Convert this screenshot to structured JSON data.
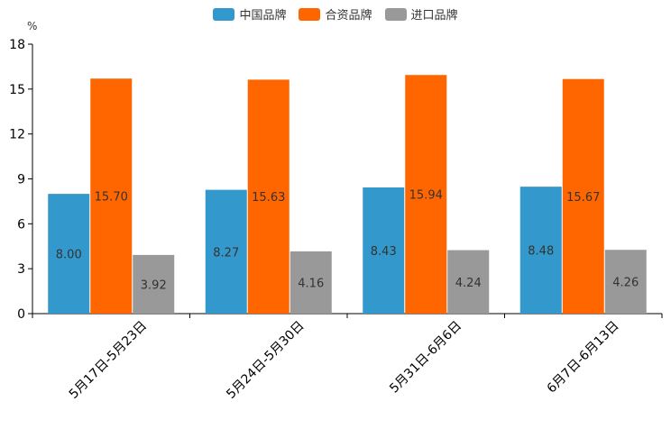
{
  "chart_data": {
    "type": "bar",
    "unit": "%",
    "categories": [
      "5月17日-5月23日",
      "5月24日-5月30日",
      "5月31日-6月6日",
      "6月7日-6月13日"
    ],
    "series": [
      {
        "name": "中国品牌",
        "color": "#3399cc",
        "values": [
          8.0,
          8.27,
          8.43,
          8.48
        ],
        "labels": [
          "8.00",
          "8.27",
          "8.43",
          "8.48"
        ]
      },
      {
        "name": "合资品牌",
        "color": "#ff6600",
        "values": [
          15.7,
          15.63,
          15.94,
          15.67
        ],
        "labels": [
          "15.70",
          "15.63",
          "15.94",
          "15.67"
        ]
      },
      {
        "name": "进口品牌",
        "color": "#999999",
        "values": [
          3.92,
          4.16,
          4.24,
          4.26
        ],
        "labels": [
          "3.92",
          "4.16",
          "4.24",
          "4.26"
        ]
      }
    ],
    "yticks": [
      "0",
      "3",
      "6",
      "9",
      "12",
      "15",
      "18"
    ],
    "ylim": [
      0,
      18
    ],
    "legend_position": "top-center"
  }
}
